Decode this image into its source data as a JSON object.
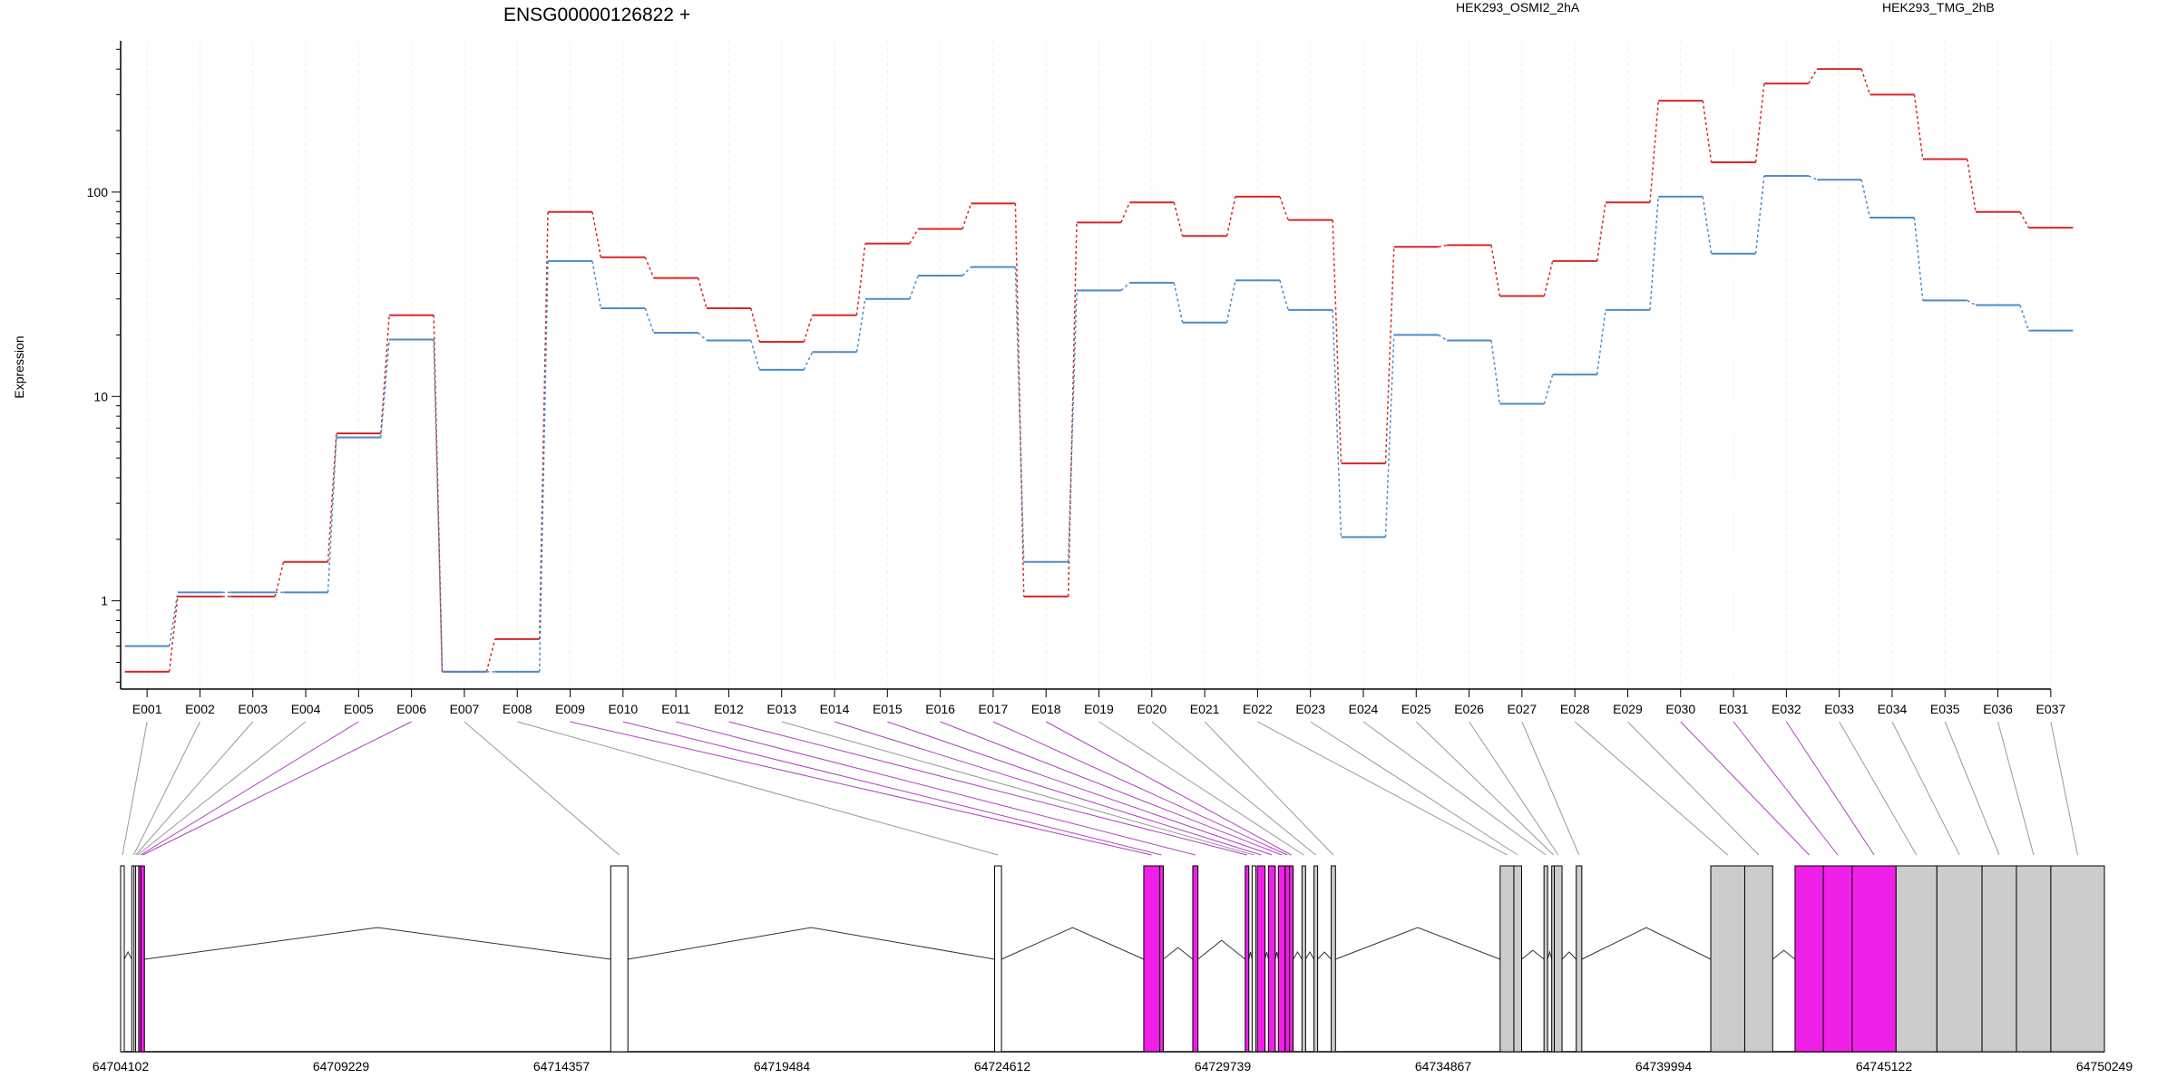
{
  "chart_data": {
    "type": "line",
    "title": "ENSG00000126822 +",
    "ylabel": "Expression",
    "xlabel": "",
    "yscale": "log",
    "ylim": [
      0.37,
      550
    ],
    "yticks": [
      1,
      10,
      100
    ],
    "ytick_labels": [
      "1",
      "10",
      "100"
    ],
    "categories": [
      "E001",
      "E002",
      "E003",
      "E004",
      "E005",
      "E006",
      "E007",
      "E008",
      "E009",
      "E010",
      "E011",
      "E012",
      "E013",
      "E014",
      "E015",
      "E016",
      "E017",
      "E018",
      "E019",
      "E020",
      "E021",
      "E022",
      "E023",
      "E024",
      "E025",
      "E026",
      "E027",
      "E028",
      "E029",
      "E030",
      "E031",
      "E032",
      "E033",
      "E034",
      "E035",
      "E036",
      "E037"
    ],
    "series": [
      {
        "name": "HEK293_OSMI2_2hA",
        "color": "#d62728",
        "values": [
          0.45,
          1.05,
          1.05,
          1.55,
          6.6,
          25,
          0.45,
          0.65,
          80,
          48,
          38,
          27,
          18.5,
          25,
          56,
          66,
          88,
          1.05,
          71,
          89,
          61,
          95,
          73,
          4.7,
          54,
          55,
          31,
          46,
          89,
          280,
          140,
          340,
          400,
          300,
          145,
          80,
          67
        ]
      },
      {
        "name": "HEK293_TMG_2hB",
        "color": "#4a8cc7",
        "values": [
          0.6,
          1.1,
          1.1,
          1.1,
          6.3,
          19,
          0.45,
          0.45,
          46,
          27,
          20.5,
          18.8,
          13.5,
          16.5,
          30,
          39,
          43,
          1.55,
          33,
          36,
          23,
          37,
          26.5,
          2.05,
          20,
          18.8,
          9.2,
          12.8,
          26.5,
          95,
          50,
          120,
          115,
          75,
          29.5,
          28,
          21
        ]
      }
    ],
    "gene_coordinates": [
      "64704102",
      "64709229",
      "64714357",
      "64719484",
      "64724612",
      "64729739",
      "64734867",
      "64739994",
      "64745122",
      "64750249"
    ],
    "coord_range": [
      64704102,
      64750249
    ],
    "exons": [
      {
        "id": "E001",
        "start": 64704102,
        "end": 64704162,
        "style": "white"
      },
      {
        "id": "E002",
        "start": 64704362,
        "end": 64704412,
        "style": "white"
      },
      {
        "id": "E003",
        "start": 64704412,
        "end": 64704452,
        "style": "white"
      },
      {
        "id": "E004",
        "start": 64704452,
        "end": 64704512,
        "style": "white"
      },
      {
        "id": "E005",
        "start": 64704522,
        "end": 64704572,
        "style": "magenta"
      },
      {
        "id": "E006",
        "start": 64704572,
        "end": 64704622,
        "style": "magenta"
      },
      {
        "id": "E007",
        "start": 64715502,
        "end": 64715902,
        "style": "white"
      },
      {
        "id": "E008",
        "start": 64724432,
        "end": 64724592,
        "style": "white"
      },
      {
        "id": "E009",
        "start": 64727902,
        "end": 64728272,
        "style": "magenta"
      },
      {
        "id": "E010",
        "start": 64728272,
        "end": 64728332,
        "style": "magenta"
      },
      {
        "id": "E011",
        "start": 64729042,
        "end": 64729162,
        "style": "magenta"
      },
      {
        "id": "E012",
        "start": 64730262,
        "end": 64730322,
        "style": "magenta"
      },
      {
        "id": "E013",
        "start": 64730422,
        "end": 64730482,
        "style": "white"
      },
      {
        "id": "E014",
        "start": 64730542,
        "end": 64730722,
        "style": "magenta"
      },
      {
        "id": "E015",
        "start": 64730802,
        "end": 64730962,
        "style": "magenta"
      },
      {
        "id": "E016",
        "start": 64731032,
        "end": 64731192,
        "style": "magenta"
      },
      {
        "id": "E017",
        "start": 64731192,
        "end": 64731292,
        "style": "magenta"
      },
      {
        "id": "E018",
        "start": 64731292,
        "end": 64731362,
        "style": "magenta"
      },
      {
        "id": "E019",
        "start": 64731582,
        "end": 64731662,
        "style": "grey"
      },
      {
        "id": "E020",
        "start": 64731862,
        "end": 64731942,
        "style": "grey"
      },
      {
        "id": "E021",
        "start": 64732262,
        "end": 64732362,
        "style": "grey"
      },
      {
        "id": "E022",
        "start": 64736192,
        "end": 64736512,
        "style": "grey"
      },
      {
        "id": "E023",
        "start": 64736512,
        "end": 64736692,
        "style": "grey"
      },
      {
        "id": "E024",
        "start": 64737212,
        "end": 64737292,
        "style": "grey"
      },
      {
        "id": "E025",
        "start": 64737392,
        "end": 64737452,
        "style": "grey"
      },
      {
        "id": "E026",
        "start": 64737452,
        "end": 64737632,
        "style": "grey"
      },
      {
        "id": "E027",
        "start": 64737962,
        "end": 64738092,
        "style": "grey"
      },
      {
        "id": "E028",
        "start": 64741092,
        "end": 64741882,
        "style": "grey"
      },
      {
        "id": "E029",
        "start": 64741882,
        "end": 64742532,
        "style": "grey"
      },
      {
        "id": "E030",
        "start": 64743052,
        "end": 64743712,
        "style": "magenta"
      },
      {
        "id": "E031",
        "start": 64743712,
        "end": 64744382,
        "style": "magenta"
      },
      {
        "id": "E032",
        "start": 64744382,
        "end": 64745402,
        "style": "magenta"
      },
      {
        "id": "E033",
        "start": 64745402,
        "end": 64746352,
        "style": "grey"
      },
      {
        "id": "E034",
        "start": 64746352,
        "end": 64747402,
        "style": "grey"
      },
      {
        "id": "E035",
        "start": 64747402,
        "end": 64748202,
        "style": "grey"
      },
      {
        "id": "E036",
        "start": 64748202,
        "end": 64749002,
        "style": "grey"
      },
      {
        "id": "E037",
        "start": 64749002,
        "end": 64750249,
        "style": "grey"
      }
    ],
    "colors": {
      "magenta": "#f020e8",
      "grey": "#cccccc",
      "white": "#ffffff",
      "link_magenta": "#b040c0",
      "link_grey": "#999999"
    }
  }
}
